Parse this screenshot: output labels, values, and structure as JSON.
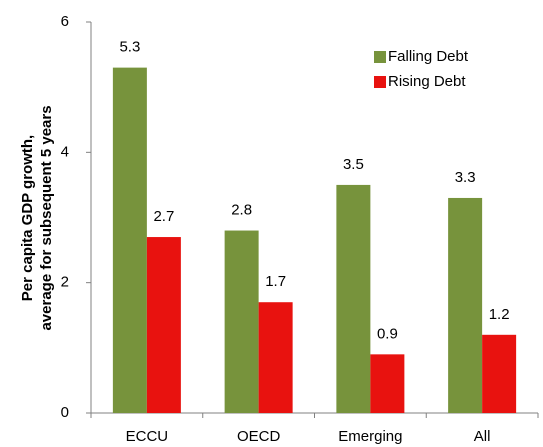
{
  "chart_data": {
    "type": "bar",
    "y_label": [
      "Per capita GDP growth,",
      "average for subsequent 5 years"
    ],
    "categories": [
      "ECCU",
      "OECD",
      "Emerging",
      "All"
    ],
    "series": [
      {
        "name": "Falling Debt",
        "color": "#77933c",
        "values": [
          5.3,
          2.8,
          3.5,
          3.3
        ]
      },
      {
        "name": "Rising Debt",
        "color": "#e8120f",
        "values": [
          2.7,
          1.7,
          0.9,
          1.2
        ]
      }
    ],
    "ylim": [
      0,
      6
    ],
    "yticks": [
      0,
      2,
      4,
      6
    ],
    "legend": "upper right"
  }
}
